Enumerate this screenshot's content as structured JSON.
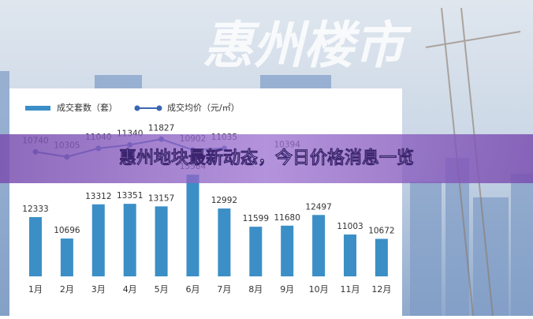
{
  "chart_data": {
    "type": "bar",
    "title": "惠州地块最新动态，今日价格消息一览",
    "watermark": "惠州楼市",
    "categories": [
      "1月",
      "2月",
      "3月",
      "4月",
      "5月",
      "6月",
      "7月",
      "8月",
      "9月",
      "10月",
      "11月",
      "12月"
    ],
    "series": [
      {
        "name": "成交套数（套）",
        "color": "#3b8fc6",
        "values": [
          12333,
          10696,
          13312,
          13351,
          13157,
          15584,
          12992,
          11599,
          11680,
          12497,
          11003,
          10672
        ]
      },
      {
        "name": "成交均价（元/㎡）",
        "type": "line",
        "axis": "y2",
        "color": "#3a67b0",
        "values": [
          10740,
          10305,
          11040,
          11340,
          11827,
          10902,
          11035,
          null,
          10394,
          null,
          null,
          null
        ]
      }
    ],
    "ylim": [
      7800,
      22000
    ],
    "y2lim": [
      0,
      16000
    ]
  }
}
